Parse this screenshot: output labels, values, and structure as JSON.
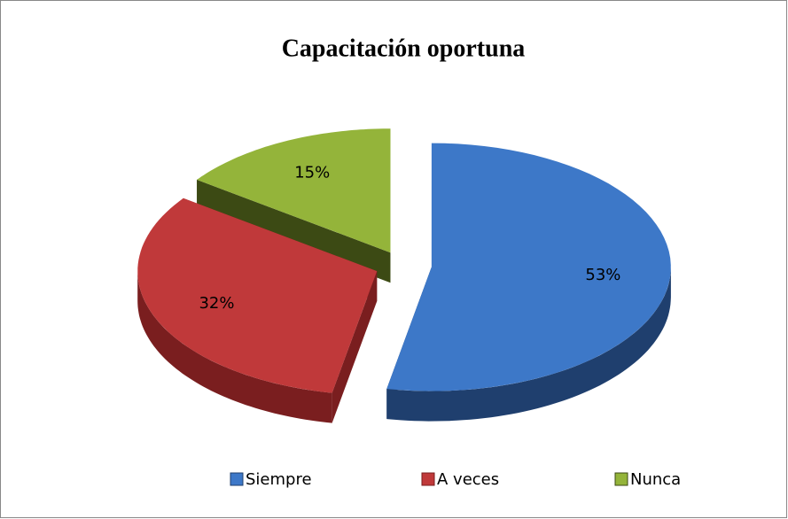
{
  "chart_data": {
    "type": "pie",
    "title": "Capacitación oportuna",
    "categories": [
      "Siempre",
      "A veces",
      "Nunca"
    ],
    "values": [
      53,
      32,
      15
    ],
    "value_labels": [
      "53%",
      "32%",
      "15%"
    ],
    "colors": [
      "#3d78c8",
      "#c0393a",
      "#94b43a"
    ],
    "side_colors": [
      "#1f3f6e",
      "#7a1e1f",
      "#3c4a14"
    ],
    "legend": "bottom"
  }
}
